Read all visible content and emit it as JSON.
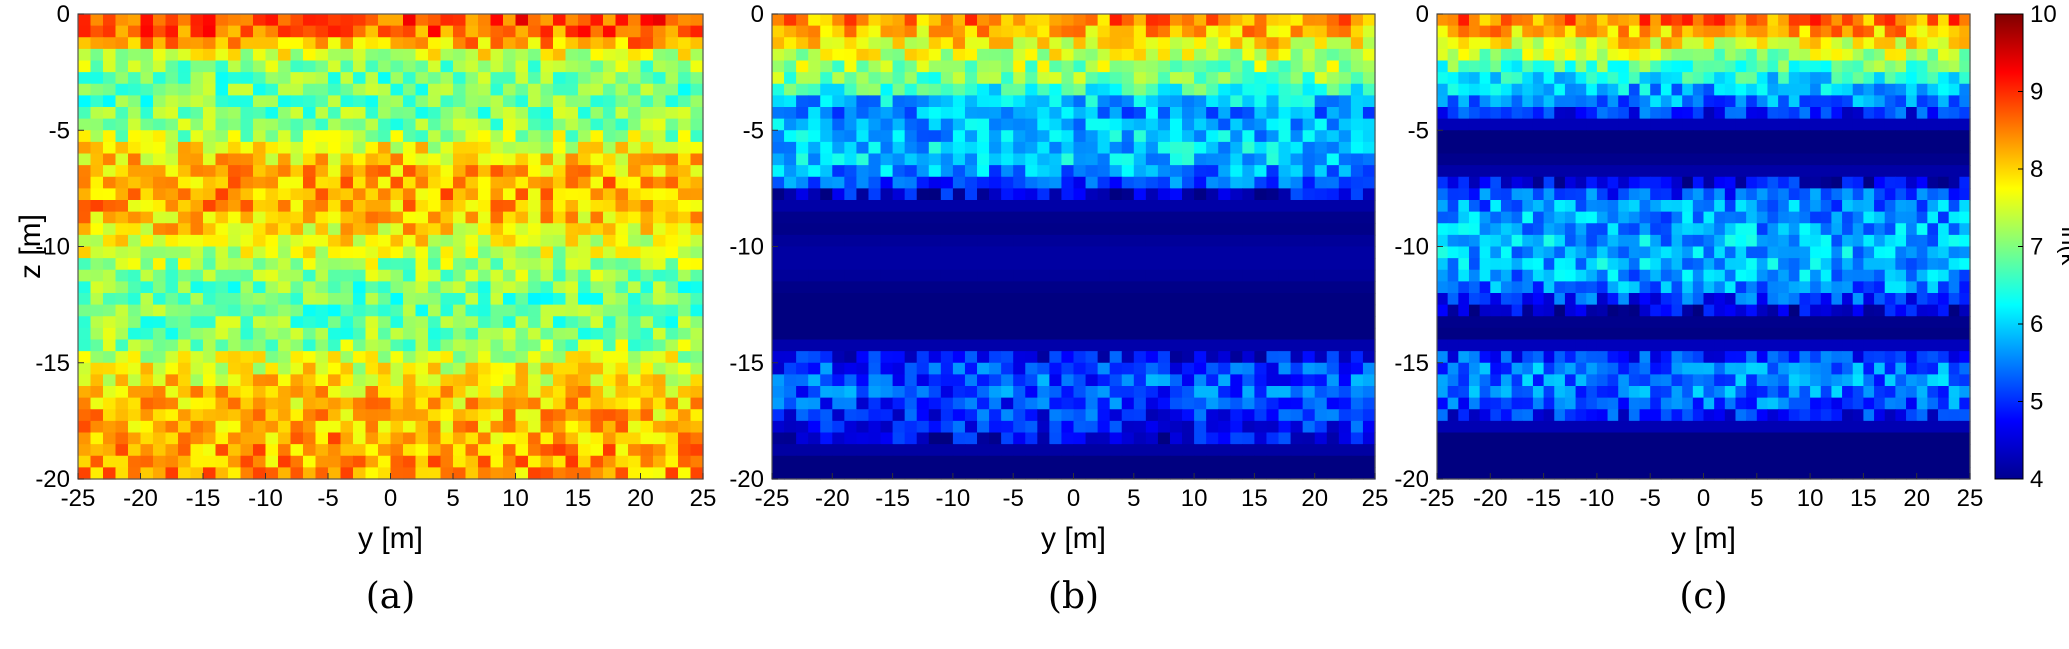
{
  "chart_data": [
    {
      "type": "heatmap",
      "caption": "(a)",
      "xlabel": "y [m]",
      "ylabel": "z [m]",
      "xlim": [
        -25,
        25
      ],
      "ylim": [
        -20,
        0
      ],
      "xticks": [
        -25,
        -20,
        -15,
        -10,
        -5,
        0,
        5,
        10,
        15,
        20,
        25
      ],
      "yticks": [
        0,
        -5,
        -10,
        -15,
        -20
      ],
      "depth_profile": [
        {
          "z": 0,
          "value": 8.9
        },
        {
          "z": -1,
          "value": 8.6
        },
        {
          "z": -2,
          "value": 7.2
        },
        {
          "z": -3,
          "value": 6.8
        },
        {
          "z": -4,
          "value": 6.9
        },
        {
          "z": -5,
          "value": 7.0
        },
        {
          "z": -6,
          "value": 7.9
        },
        {
          "z": -7,
          "value": 8.2
        },
        {
          "z": -8,
          "value": 8.3
        },
        {
          "z": -9,
          "value": 8.0
        },
        {
          "z": -10,
          "value": 7.6
        },
        {
          "z": -11,
          "value": 7.1
        },
        {
          "z": -12,
          "value": 6.8
        },
        {
          "z": -13,
          "value": 6.9
        },
        {
          "z": -14,
          "value": 7.0
        },
        {
          "z": -15,
          "value": 7.6
        },
        {
          "z": -16,
          "value": 7.9
        },
        {
          "z": -17,
          "value": 8.1
        },
        {
          "z": -18,
          "value": 8.2
        },
        {
          "z": -19,
          "value": 8.3
        },
        {
          "z": -20,
          "value": 8.3
        }
      ]
    },
    {
      "type": "heatmap",
      "caption": "(b)",
      "xlabel": "y [m]",
      "ylabel": "",
      "xlim": [
        -25,
        25
      ],
      "ylim": [
        -20,
        0
      ],
      "xticks": [
        -25,
        -20,
        -15,
        -10,
        -5,
        0,
        5,
        10,
        15,
        20,
        25
      ],
      "yticks": [
        0,
        -5,
        -10,
        -15,
        -20
      ],
      "depth_profile": [
        {
          "z": 0,
          "value": 8.6
        },
        {
          "z": -1,
          "value": 8.0
        },
        {
          "z": -2,
          "value": 7.3
        },
        {
          "z": -3,
          "value": 6.8
        },
        {
          "z": -4,
          "value": 5.6
        },
        {
          "z": -5,
          "value": 5.8
        },
        {
          "z": -6,
          "value": 6.0
        },
        {
          "z": -7,
          "value": 5.5
        },
        {
          "z": -8,
          "value": 4.3
        },
        {
          "z": -9,
          "value": 4.0
        },
        {
          "z": -10,
          "value": 4.2
        },
        {
          "z": -11,
          "value": 4.2
        },
        {
          "z": -12,
          "value": 4.0
        },
        {
          "z": -13,
          "value": 4.0
        },
        {
          "z": -14,
          "value": 4.0
        },
        {
          "z": -15,
          "value": 5.0
        },
        {
          "z": -16,
          "value": 5.3
        },
        {
          "z": -17,
          "value": 5.0
        },
        {
          "z": -18,
          "value": 4.8
        },
        {
          "z": -19,
          "value": 4.0
        },
        {
          "z": -20,
          "value": 4.0
        }
      ]
    },
    {
      "type": "heatmap",
      "caption": "(c)",
      "xlabel": "y [m]",
      "ylabel": "",
      "xlim": [
        -25,
        25
      ],
      "ylim": [
        -20,
        0
      ],
      "xticks": [
        -25,
        -20,
        -15,
        -10,
        -5,
        0,
        5,
        10,
        15,
        20,
        25
      ],
      "yticks": [
        0,
        -5,
        -10,
        -15,
        -20
      ],
      "depth_profile": [
        {
          "z": 0,
          "value": 8.7
        },
        {
          "z": -1,
          "value": 8.0
        },
        {
          "z": -2,
          "value": 7.0
        },
        {
          "z": -3,
          "value": 6.0
        },
        {
          "z": -4,
          "value": 5.3
        },
        {
          "z": -5,
          "value": 4.0
        },
        {
          "z": -6,
          "value": 4.0
        },
        {
          "z": -7,
          "value": 4.3
        },
        {
          "z": -8,
          "value": 5.5
        },
        {
          "z": -9,
          "value": 5.7
        },
        {
          "z": -10,
          "value": 5.8
        },
        {
          "z": -11,
          "value": 5.8
        },
        {
          "z": -12,
          "value": 5.4
        },
        {
          "z": -13,
          "value": 4.1
        },
        {
          "z": -14,
          "value": 4.0
        },
        {
          "z": -15,
          "value": 5.4
        },
        {
          "z": -16,
          "value": 5.5
        },
        {
          "z": -17,
          "value": 5.2
        },
        {
          "z": -18,
          "value": 4.0
        },
        {
          "z": -19,
          "value": 4.0
        },
        {
          "z": -20,
          "value": 4.0
        }
      ]
    }
  ],
  "colorbar": {
    "label": "ln(k",
    "colormap": "jet",
    "min": 4,
    "max": 10,
    "ticks": [
      4,
      5,
      6,
      7,
      8,
      9,
      10
    ]
  }
}
